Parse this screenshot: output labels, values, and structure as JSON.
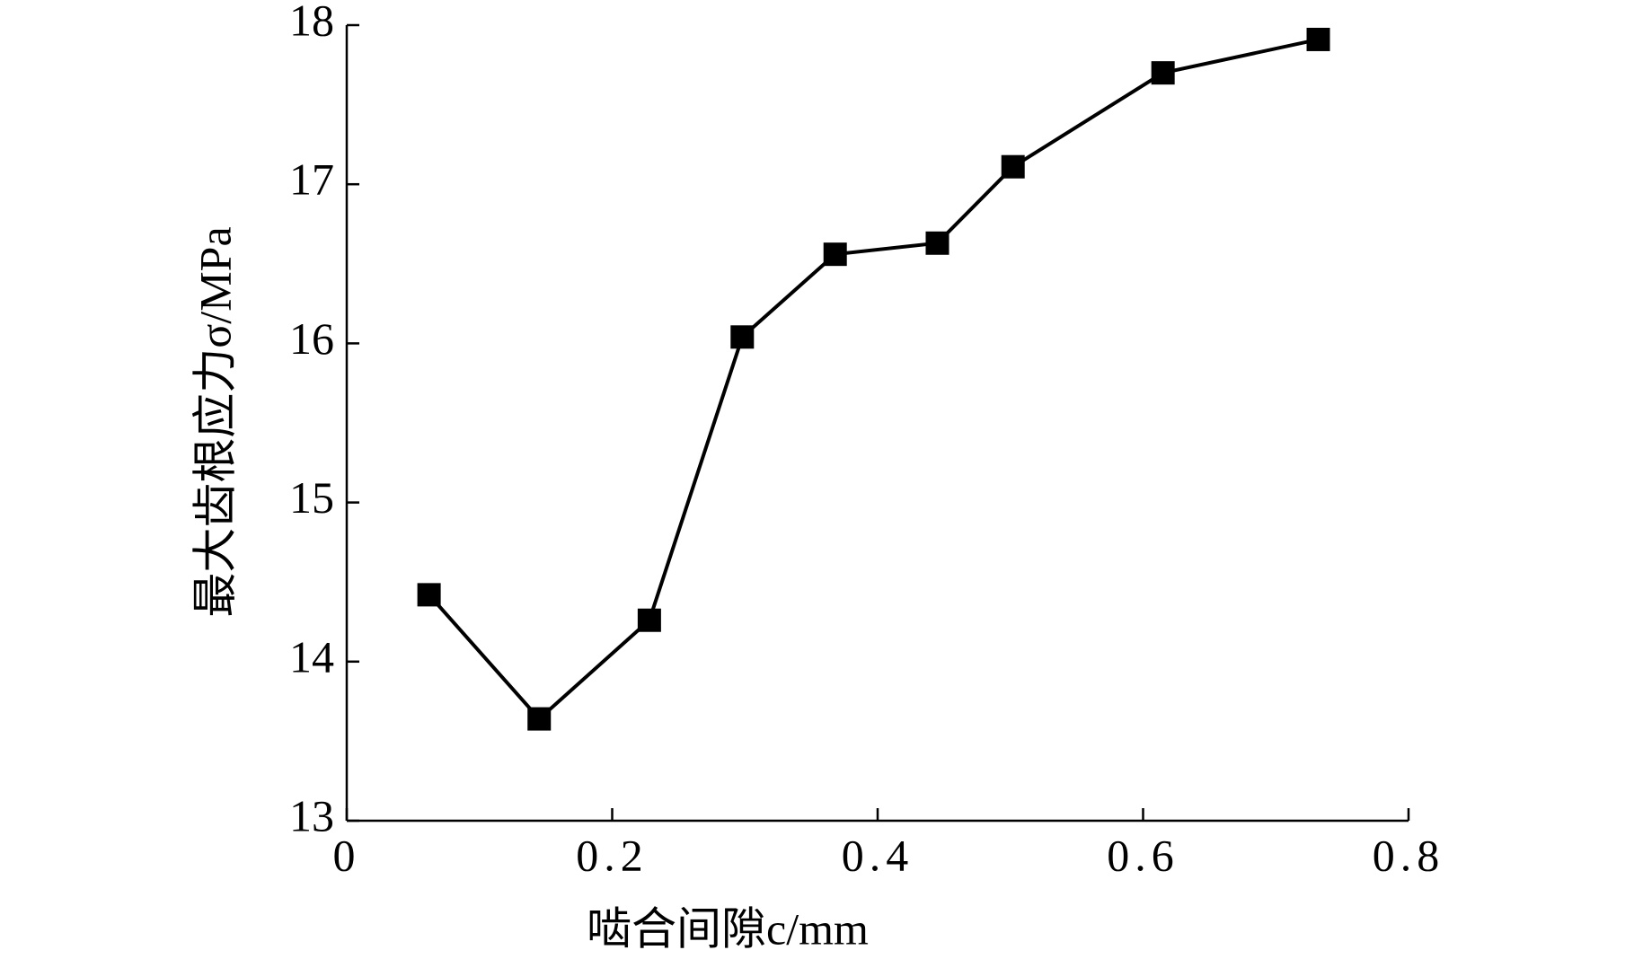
{
  "chart_data": {
    "type": "line",
    "x_label": "啮合间隙c/mm",
    "y_label": "最大齿根应力σ/MPa",
    "x": [
      0.062,
      0.145,
      0.228,
      0.298,
      0.368,
      0.445,
      0.502,
      0.615,
      0.732
    ],
    "series": [
      {
        "color": "#000000",
        "values": [
          14.42,
          13.64,
          14.26,
          16.04,
          16.56,
          16.63,
          17.11,
          17.7,
          17.91
        ]
      }
    ],
    "xlim": [
      0,
      0.8
    ],
    "xticks": [
      0,
      0.2,
      0.4,
      0.6,
      0.8
    ],
    "ylim": [
      13,
      18
    ],
    "yticks": [
      13,
      14,
      15,
      16,
      17,
      18
    ],
    "grid": false,
    "marker": "square"
  }
}
